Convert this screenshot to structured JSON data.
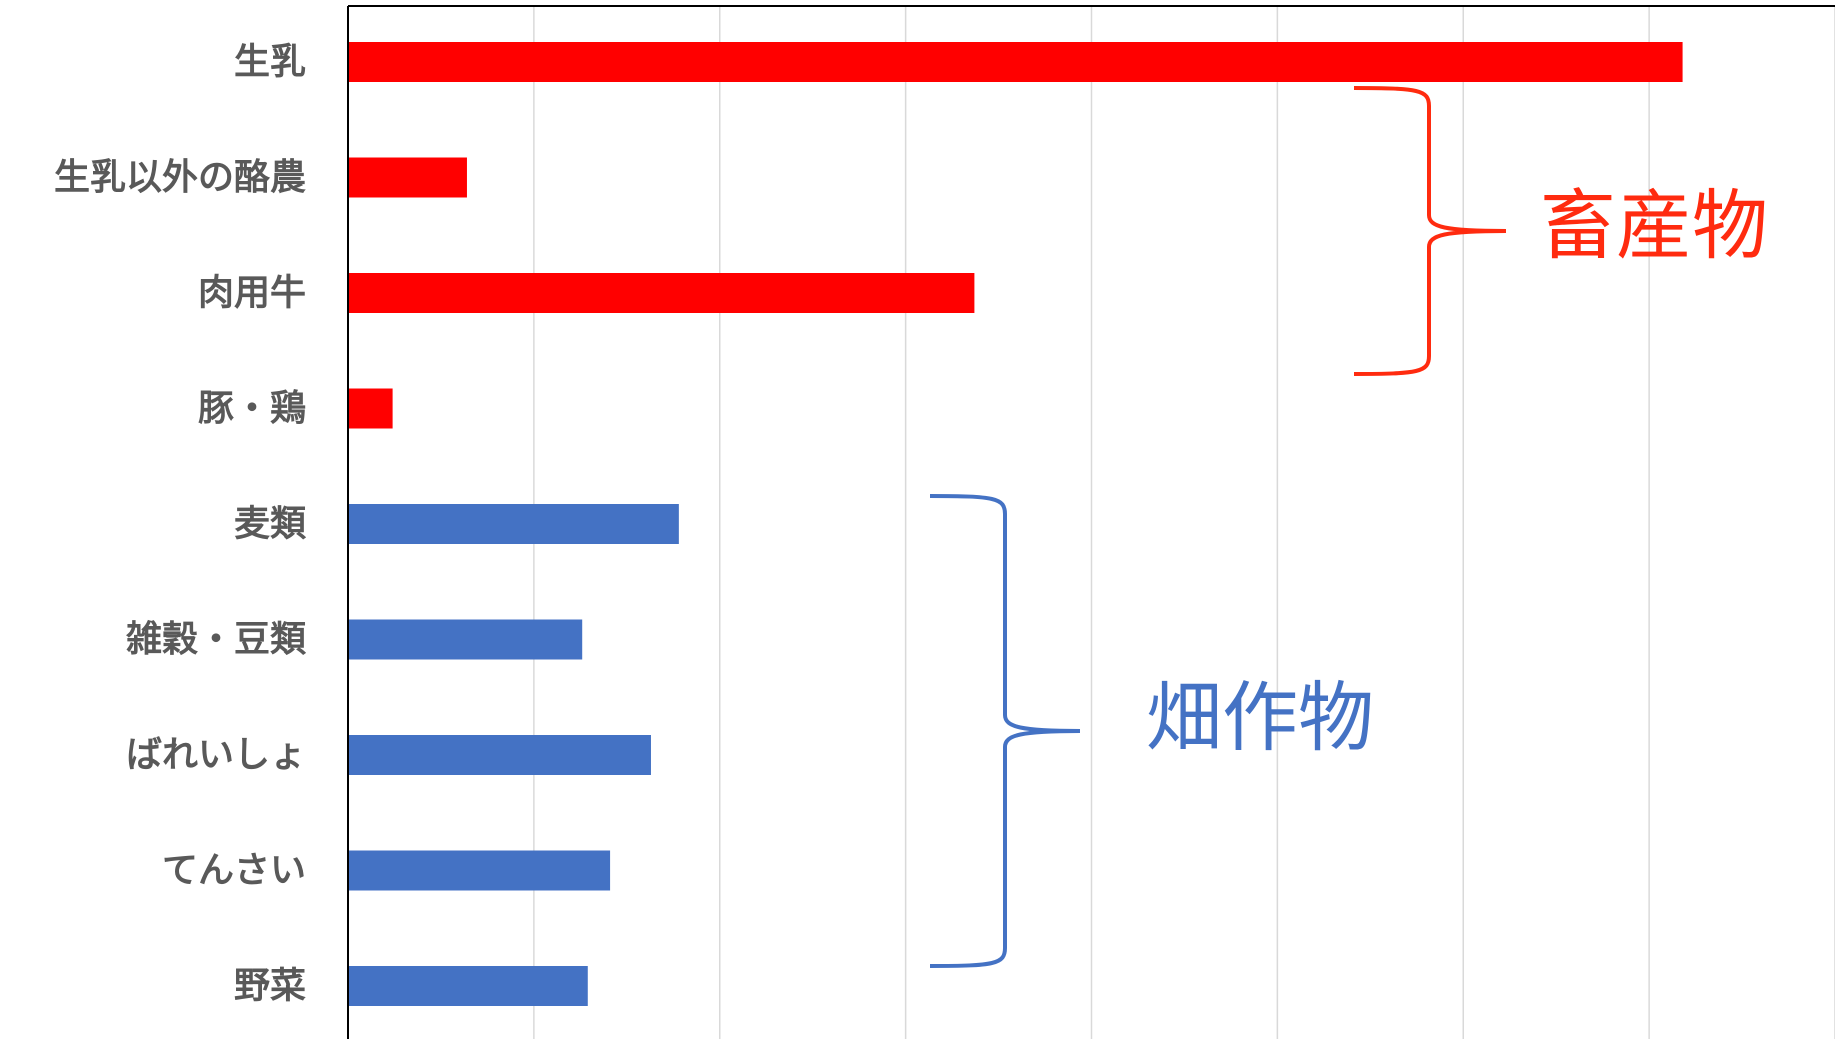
{
  "chart_data": {
    "type": "bar",
    "orientation": "horizontal",
    "categories": [
      "生乳",
      "生乳以外の酪農",
      "肉用牛",
      "豚・鶏",
      "麦類",
      "雑穀・豆類",
      "ばれいしょ",
      "てんさい",
      "野菜"
    ],
    "values": [
      7.18,
      0.64,
      3.37,
      0.24,
      1.78,
      1.26,
      1.63,
      1.41,
      1.29
    ],
    "bar_colors": [
      "#ff0000",
      "#ff0000",
      "#ff0000",
      "#ff0000",
      "#4472c4",
      "#4472c4",
      "#4472c4",
      "#4472c4",
      "#4472c4"
    ],
    "xlim": [
      0,
      8
    ],
    "x_gridlines": 8,
    "grid": true,
    "tick_labels_visible": false,
    "title": "",
    "xlabel": "",
    "ylabel": "",
    "groups": [
      {
        "label": "畜産物",
        "color": "#ff2b0f",
        "categories": [
          "生乳",
          "生乳以外の酪農",
          "肉用牛",
          "豚・鶏"
        ]
      },
      {
        "label": "畑作物",
        "color": "#4472c4",
        "categories": [
          "麦類",
          "雑穀・豆類",
          "ばれいしょ",
          "てんさい",
          "野菜"
        ]
      }
    ]
  }
}
